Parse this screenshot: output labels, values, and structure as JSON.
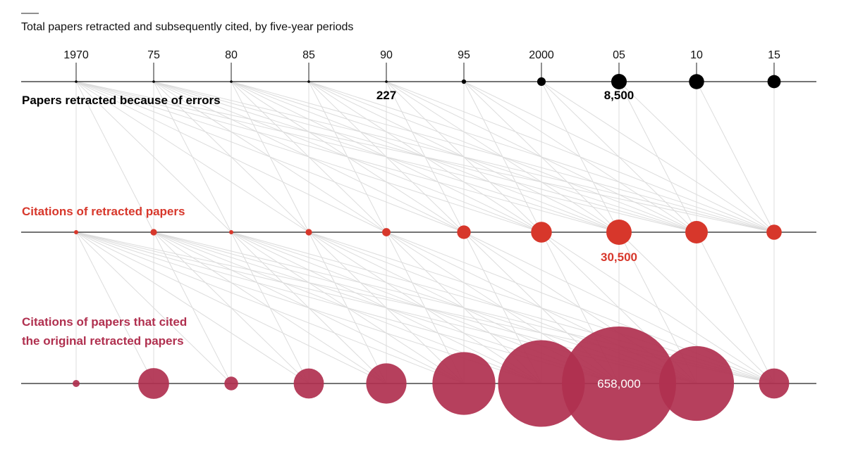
{
  "chart_data": {
    "type": "bubble-timeline",
    "title": "Total papers retracted and subsequently cited, by five-year periods",
    "periods": [
      "1970",
      "75",
      "80",
      "85",
      "90",
      "95",
      "2000",
      "05",
      "10",
      "15"
    ],
    "rows": [
      {
        "id": "retracted",
        "label_lines": [
          "Papers retracted because of errors"
        ],
        "color": "#000000",
        "values": [
          3,
          5,
          8,
          15,
          227,
          700,
          2600,
          8500,
          8100,
          6200
        ],
        "annotations": [
          {
            "period_index": 4,
            "text": "227"
          },
          {
            "period_index": 7,
            "text": "8,500"
          }
        ]
      },
      {
        "id": "citations",
        "label_lines": [
          "Citations of retracted papers"
        ],
        "color": "#d7372b",
        "values": [
          200,
          2000,
          600,
          2000,
          3300,
          8800,
          20500,
          30500,
          24000,
          11000
        ],
        "annotations": [
          {
            "period_index": 7,
            "text": "30,500"
          }
        ]
      },
      {
        "id": "second-order",
        "label_lines": [
          "Citations of papers that cited",
          "the original retracted papers"
        ],
        "color": "#b0304f",
        "values": [
          1800,
          48000,
          9500,
          46000,
          82000,
          200000,
          380000,
          658000,
          283000,
          46000
        ],
        "annotations": [
          {
            "period_index": 7,
            "text": "658,000"
          }
        ]
      }
    ],
    "colors": {
      "axis": "#222222",
      "link": "#dcdcdc",
      "annotation_black": "#000000",
      "annotation_red": "#d7372b",
      "annotation_inner": "#ffffff"
    }
  }
}
